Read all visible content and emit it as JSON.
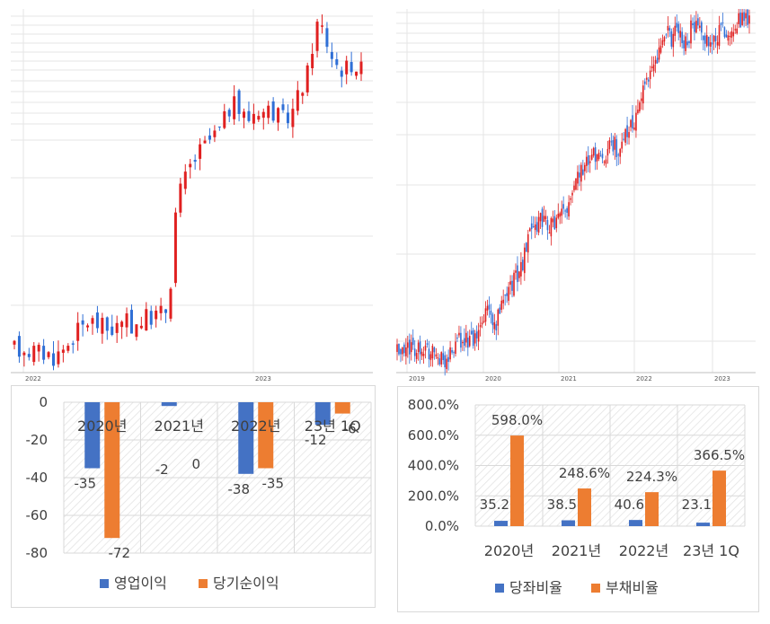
{
  "colors": {
    "candle_up": "#e02020",
    "candle_down": "#2f6fd6",
    "series_blue": "#4472c4",
    "series_orange": "#ed7d31",
    "grid": "#d9d9d9"
  },
  "chart_data": [
    {
      "type": "candlestick",
      "x_tick_labels": [
        "2022",
        "2023"
      ],
      "trend": [
        31,
        31,
        32,
        30,
        31,
        29,
        30,
        28,
        29,
        31,
        33,
        36,
        38,
        40,
        42,
        41,
        40,
        39,
        38,
        40,
        39,
        41,
        40,
        41,
        42,
        43,
        44,
        44,
        45,
        48,
        80,
        90,
        95,
        100,
        103,
        106,
        108,
        111,
        112,
        115,
        121,
        123,
        121,
        119,
        118,
        121,
        122,
        120,
        122,
        119,
        117,
        118,
        120,
        125,
        130,
        135,
        147,
        155,
        150,
        144,
        139,
        137,
        136,
        139,
        138,
        136
      ]
    },
    {
      "type": "candlestick",
      "x_tick_labels": [
        "2019",
        "2020",
        "2021",
        "2022",
        "2023"
      ],
      "trend": [
        40,
        37,
        41,
        44,
        40,
        45,
        42,
        36,
        39,
        34,
        28,
        37,
        47,
        51,
        50,
        52,
        48,
        56,
        72,
        82,
        58,
        74,
        92,
        102,
        106,
        112,
        122,
        147,
        162,
        161,
        164,
        160,
        158,
        162,
        167,
        172,
        190,
        205,
        212,
        215,
        222,
        226,
        225,
        226,
        232,
        238,
        226,
        246,
        252,
        257,
        268,
        300,
        302,
        312,
        322,
        333,
        342,
        336,
        344,
        337,
        331,
        348,
        351,
        340,
        339,
        336,
        337,
        346,
        343,
        341,
        352,
        355,
        358,
        352
      ]
    },
    {
      "type": "bar",
      "categories": [
        "2020년",
        "2021년",
        "2022년",
        "23년 1Q"
      ],
      "series": [
        {
          "name": "영업이익",
          "values": [
            -35,
            -2,
            -38,
            -12
          ]
        },
        {
          "name": "당기순이익",
          "values": [
            -72,
            0,
            -35,
            -6
          ]
        }
      ],
      "data_labels": [
        [
          "-35",
          "-2",
          "-38",
          "-12"
        ],
        [
          "-72",
          "0",
          "-35",
          "-6"
        ]
      ],
      "y_tick_labels": [
        "0",
        "-20",
        "-40",
        "-60",
        "-80"
      ],
      "ylim": [
        -80,
        0
      ],
      "legend_position": "bottom",
      "grid": true
    },
    {
      "type": "bar",
      "categories": [
        "2020년",
        "2021년",
        "2022년",
        "23년 1Q"
      ],
      "series": [
        {
          "name": "당좌비율",
          "values": [
            35.2,
            38.5,
            40.6,
            23.1
          ]
        },
        {
          "name": "부채비율",
          "values": [
            598.0,
            248.6,
            224.3,
            366.5
          ]
        }
      ],
      "data_labels": [
        [
          "35.2%",
          "38.5%",
          "40.6%",
          "23.1%"
        ],
        [
          "598.0%",
          "248.6%",
          "224.3%",
          "366.5%"
        ]
      ],
      "y_tick_labels": [
        "800.0%",
        "600.0%",
        "400.0%",
        "200.0%",
        "0.0%"
      ],
      "ylim": [
        0,
        800
      ],
      "legend_position": "bottom",
      "grid": true
    }
  ]
}
